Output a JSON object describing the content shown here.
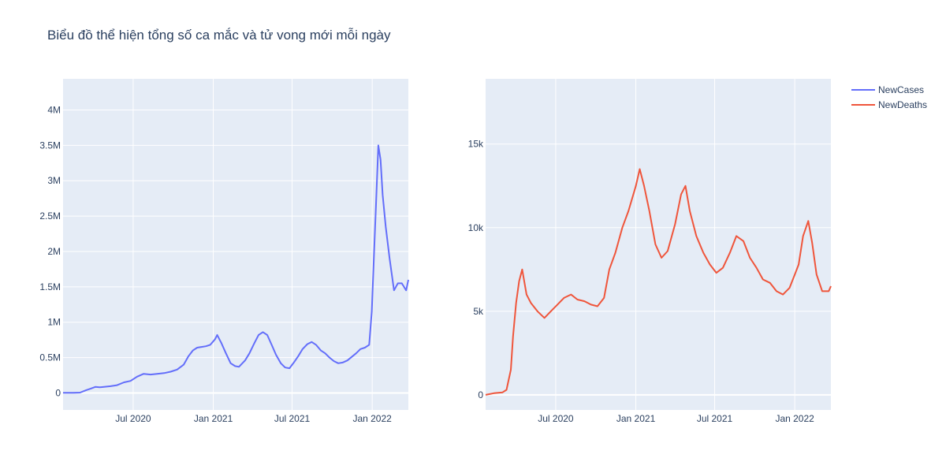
{
  "title": "Biểu đồ thể hiện tổng số ca mắc và tử vong mới mỗi ngày",
  "chart_data": [
    {
      "type": "line",
      "title": "",
      "xlabel": "",
      "ylabel": "",
      "xlim": [
        "2020-01-22",
        "2022-03-25"
      ],
      "ylim": [
        -240000,
        4440000
      ],
      "grid": true,
      "x_ticks": [
        {
          "value": "2020-07-01",
          "label": "Jul 2020"
        },
        {
          "value": "2021-01-01",
          "label": "Jan 2021"
        },
        {
          "value": "2021-07-01",
          "label": "Jul 2021"
        },
        {
          "value": "2022-01-01",
          "label": "Jan 2022"
        }
      ],
      "y_ticks": [
        {
          "value": 0,
          "label": "0"
        },
        {
          "value": 500000,
          "label": "0.5M"
        },
        {
          "value": 1000000,
          "label": "1M"
        },
        {
          "value": 1500000,
          "label": "1.5M"
        },
        {
          "value": 2000000,
          "label": "2M"
        },
        {
          "value": 2500000,
          "label": "2.5M"
        },
        {
          "value": 3000000,
          "label": "3M"
        },
        {
          "value": 3500000,
          "label": "3.5M"
        },
        {
          "value": 4000000,
          "label": "4M"
        }
      ],
      "series": [
        {
          "name": "NewCases",
          "color": "#636efa",
          "x": [
            "2020-01-22",
            "2020-02-01",
            "2020-02-15",
            "2020-03-01",
            "2020-03-15",
            "2020-03-25",
            "2020-04-05",
            "2020-04-15",
            "2020-04-25",
            "2020-05-10",
            "2020-05-25",
            "2020-06-10",
            "2020-06-25",
            "2020-07-10",
            "2020-07-25",
            "2020-08-10",
            "2020-08-25",
            "2020-09-10",
            "2020-09-25",
            "2020-10-10",
            "2020-10-25",
            "2020-11-05",
            "2020-11-15",
            "2020-11-25",
            "2020-12-05",
            "2020-12-15",
            "2020-12-25",
            "2021-01-05",
            "2021-01-10",
            "2021-01-20",
            "2021-01-30",
            "2021-02-10",
            "2021-02-20",
            "2021-03-01",
            "2021-03-15",
            "2021-03-25",
            "2021-04-05",
            "2021-04-15",
            "2021-04-25",
            "2021-05-05",
            "2021-05-15",
            "2021-05-25",
            "2021-06-05",
            "2021-06-15",
            "2021-06-25",
            "2021-07-05",
            "2021-07-15",
            "2021-07-25",
            "2021-08-05",
            "2021-08-15",
            "2021-08-25",
            "2021-09-05",
            "2021-09-15",
            "2021-09-25",
            "2021-10-05",
            "2021-10-15",
            "2021-10-25",
            "2021-11-05",
            "2021-11-15",
            "2021-11-25",
            "2021-12-05",
            "2021-12-15",
            "2021-12-25",
            "2021-12-31",
            "2022-01-05",
            "2022-01-10",
            "2022-01-15",
            "2022-01-20",
            "2022-01-25",
            "2022-02-01",
            "2022-02-10",
            "2022-02-20",
            "2022-03-01",
            "2022-03-10",
            "2022-03-20",
            "2022-03-25"
          ],
          "values": [
            2000,
            3000,
            3000,
            5000,
            40000,
            60000,
            85000,
            80000,
            85000,
            95000,
            110000,
            150000,
            170000,
            230000,
            270000,
            260000,
            270000,
            280000,
            300000,
            330000,
            400000,
            520000,
            600000,
            640000,
            650000,
            660000,
            680000,
            760000,
            820000,
            700000,
            560000,
            420000,
            380000,
            370000,
            460000,
            560000,
            700000,
            820000,
            860000,
            820000,
            680000,
            540000,
            420000,
            360000,
            350000,
            430000,
            520000,
            620000,
            690000,
            720000,
            680000,
            600000,
            560000,
            500000,
            450000,
            420000,
            430000,
            460000,
            510000,
            560000,
            620000,
            640000,
            680000,
            1150000,
            1950000,
            2700000,
            3500000,
            3300000,
            2800000,
            2350000,
            1900000,
            1450000,
            1550000,
            1550000,
            1450000,
            1600000
          ]
        }
      ]
    },
    {
      "type": "line",
      "title": "",
      "xlabel": "",
      "ylabel": "",
      "xlim": [
        "2020-01-22",
        "2022-03-25"
      ],
      "ylim": [
        -900,
        18900
      ],
      "grid": true,
      "x_ticks": [
        {
          "value": "2020-07-01",
          "label": "Jul 2020"
        },
        {
          "value": "2021-01-01",
          "label": "Jan 2021"
        },
        {
          "value": "2021-07-01",
          "label": "Jul 2021"
        },
        {
          "value": "2022-01-01",
          "label": "Jan 2022"
        }
      ],
      "y_ticks": [
        {
          "value": 0,
          "label": "0"
        },
        {
          "value": 5000,
          "label": "5k"
        },
        {
          "value": 10000,
          "label": "10k"
        },
        {
          "value": 15000,
          "label": "15k"
        }
      ],
      "series": [
        {
          "name": "NewDeaths",
          "color": "#ef553b",
          "x": [
            "2020-01-22",
            "2020-02-10",
            "2020-03-01",
            "2020-03-10",
            "2020-03-20",
            "2020-03-25",
            "2020-04-01",
            "2020-04-08",
            "2020-04-15",
            "2020-04-25",
            "2020-05-05",
            "2020-05-20",
            "2020-06-05",
            "2020-06-20",
            "2020-07-05",
            "2020-07-20",
            "2020-08-05",
            "2020-08-20",
            "2020-09-05",
            "2020-09-20",
            "2020-10-05",
            "2020-10-20",
            "2020-11-01",
            "2020-11-15",
            "2020-12-01",
            "2020-12-15",
            "2021-01-01",
            "2021-01-10",
            "2021-01-20",
            "2021-02-01",
            "2021-02-15",
            "2021-03-01",
            "2021-03-15",
            "2021-04-01",
            "2021-04-15",
            "2021-04-25",
            "2021-05-05",
            "2021-05-20",
            "2021-06-05",
            "2021-06-20",
            "2021-07-05",
            "2021-07-20",
            "2021-08-05",
            "2021-08-20",
            "2021-09-05",
            "2021-09-20",
            "2021-10-05",
            "2021-10-20",
            "2021-11-05",
            "2021-11-20",
            "2021-12-05",
            "2021-12-20",
            "2022-01-01",
            "2022-01-10",
            "2022-01-20",
            "2022-02-01",
            "2022-02-10",
            "2022-02-20",
            "2022-03-05",
            "2022-03-20",
            "2022-03-25"
          ],
          "values": [
            0,
            100,
            150,
            300,
            1500,
            3500,
            5500,
            6800,
            7500,
            6000,
            5500,
            5000,
            4600,
            5000,
            5400,
            5800,
            6000,
            5700,
            5600,
            5400,
            5300,
            5800,
            7500,
            8500,
            10000,
            11000,
            12500,
            13500,
            12500,
            11000,
            9000,
            8200,
            8600,
            10200,
            12000,
            12500,
            11000,
            9500,
            8500,
            7800,
            7300,
            7600,
            8500,
            9500,
            9200,
            8200,
            7600,
            6900,
            6700,
            6200,
            6000,
            6400,
            7200,
            7800,
            9500,
            10400,
            9100,
            7200,
            6200,
            6200,
            6500
          ]
        }
      ]
    }
  ]
}
